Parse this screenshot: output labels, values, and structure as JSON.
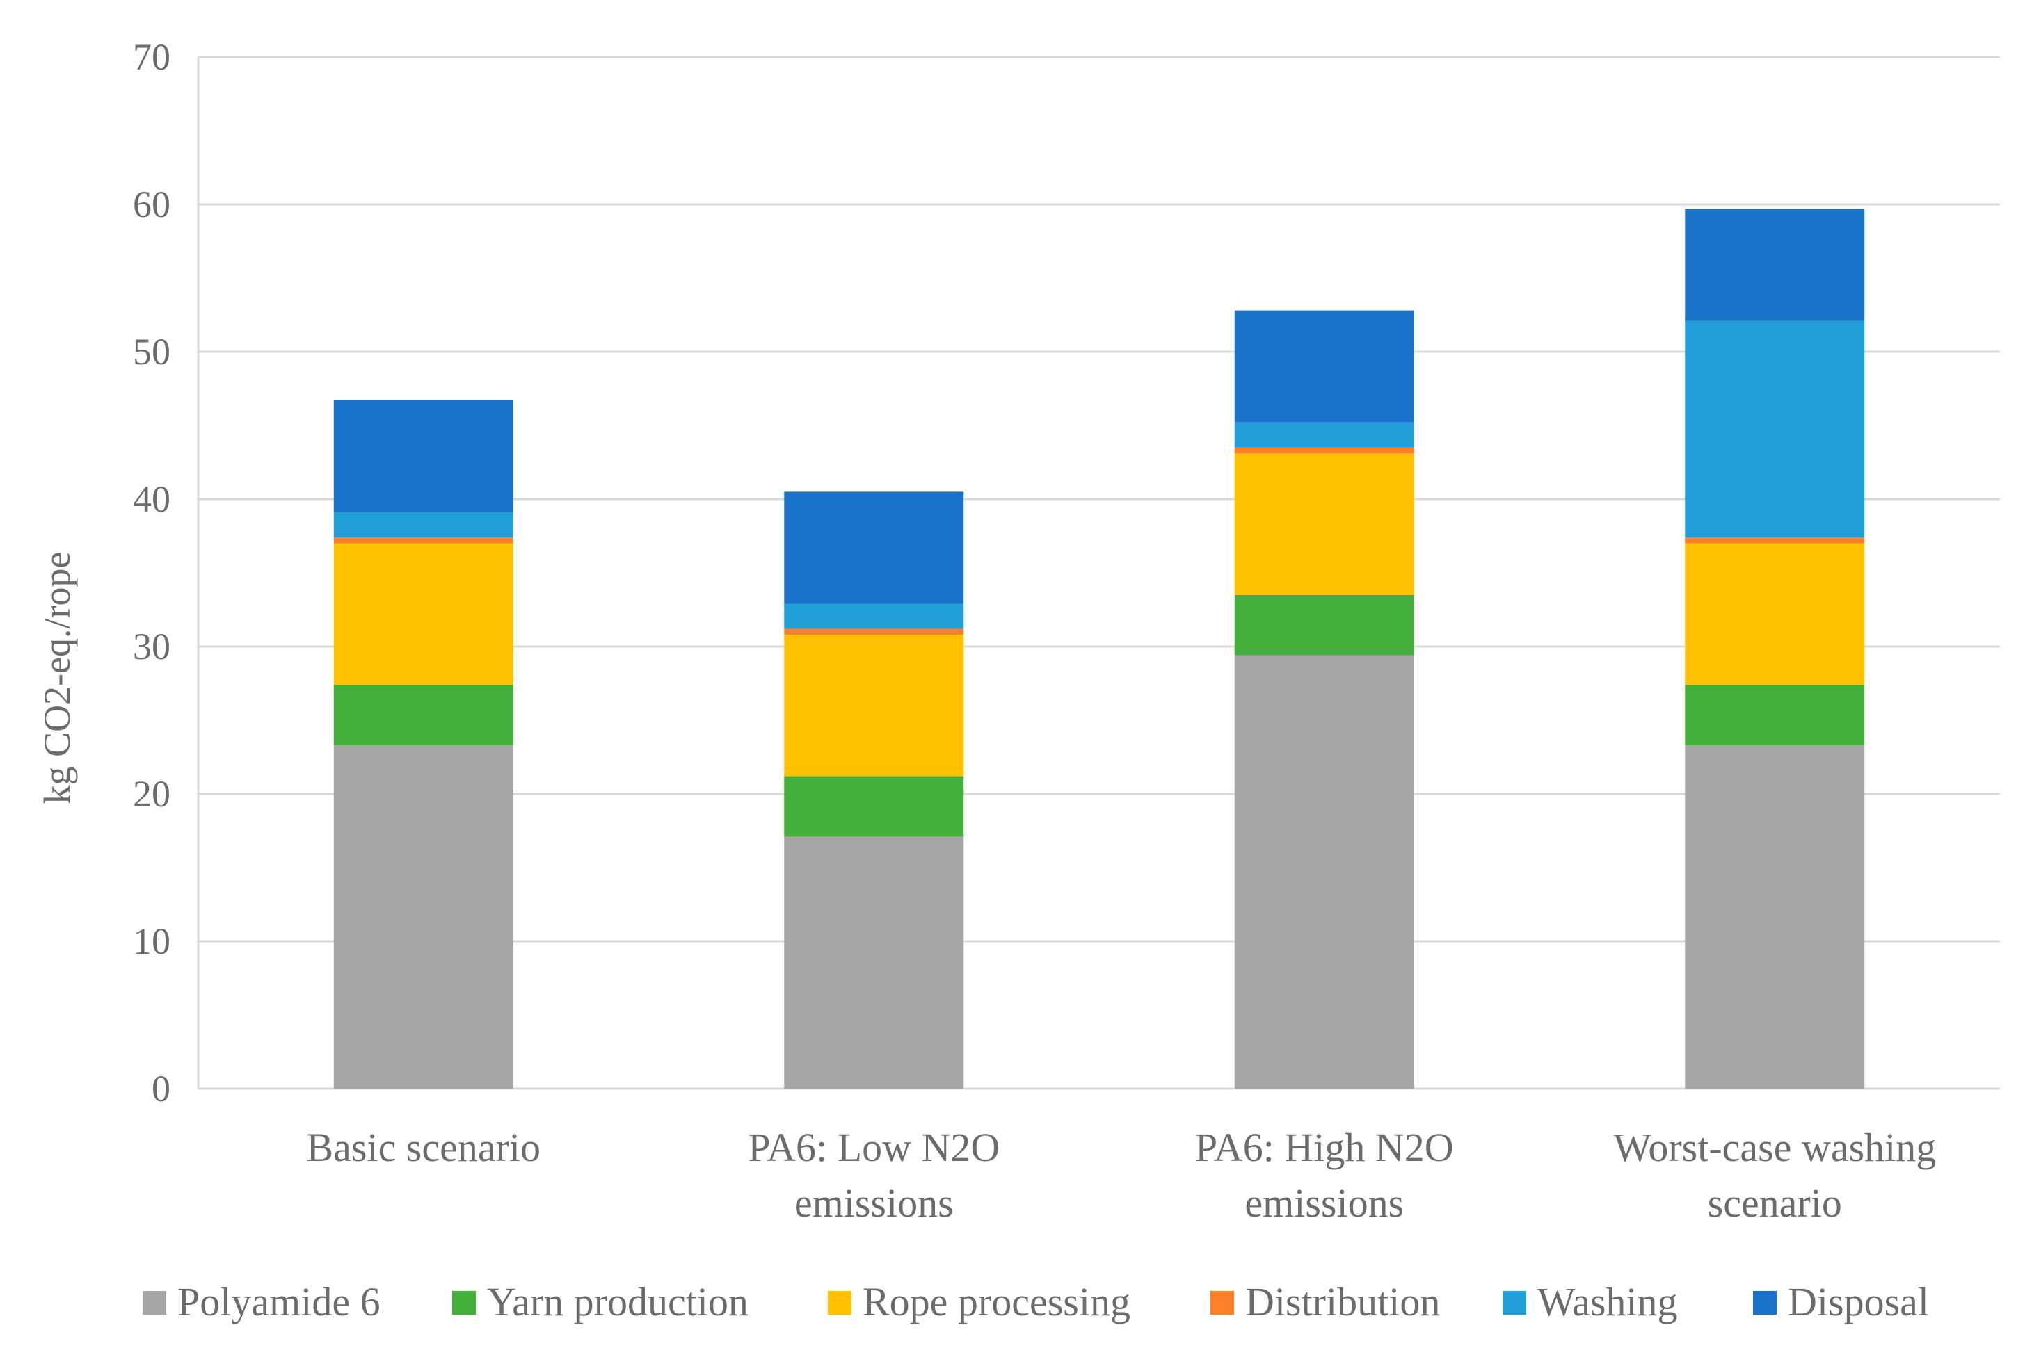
{
  "chart_data": {
    "type": "bar",
    "stacked": true,
    "title": "",
    "xlabel": "",
    "ylabel": "kg CO2-eq./rope",
    "ylim": [
      0,
      70
    ],
    "yticks": [
      0,
      10,
      20,
      30,
      40,
      50,
      60,
      70
    ],
    "grid": true,
    "legend_position": "bottom",
    "categories": [
      [
        "Basic scenario"
      ],
      [
        "PA6: Low N2O",
        "emissions"
      ],
      [
        "PA6: High N2O",
        "emissions"
      ],
      [
        "Worst-case washing",
        "scenario"
      ]
    ],
    "series": [
      {
        "name": "Polyamide 6",
        "color": "#a6a6a6",
        "values": [
          23.3,
          17.1,
          29.4,
          23.3
        ]
      },
      {
        "name": "Yarn production",
        "color": "#44b03c",
        "values": [
          4.1,
          4.1,
          4.1,
          4.1
        ]
      },
      {
        "name": "Rope processing",
        "color": "#ffc000",
        "values": [
          9.6,
          9.6,
          9.6,
          9.6
        ]
      },
      {
        "name": "Distribution",
        "color": "#fd7f27",
        "values": [
          0.4,
          0.4,
          0.4,
          0.4
        ]
      },
      {
        "name": "Washing",
        "color": "#1f9ed8",
        "values": [
          1.7,
          1.7,
          1.7,
          14.7
        ]
      },
      {
        "name": "Disposal",
        "color": "#1a73c8",
        "values": [
          7.6,
          7.6,
          7.6,
          7.6
        ]
      }
    ]
  }
}
